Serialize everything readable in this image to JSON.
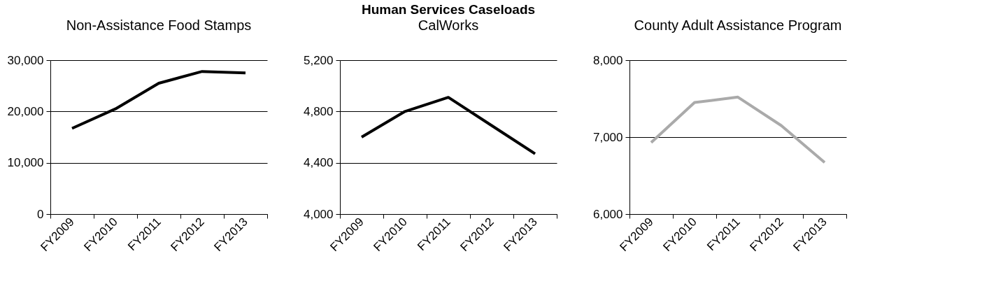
{
  "chart_data": [
    {
      "type": "line",
      "title": "Non-Assistance Food Stamps",
      "categories": [
        "FY2009",
        "FY2010",
        "FY2011",
        "FY2012",
        "FY2013"
      ],
      "series": [
        {
          "color": "#000000",
          "values": [
            16700,
            20500,
            25500,
            27800,
            27500
          ]
        }
      ],
      "ylim": [
        0,
        30000
      ],
      "yticks": [
        0,
        {
          "value": 10000,
          "label": "10,000"
        },
        {
          "value": 20000,
          "label": "20,000"
        },
        {
          "value": 30000,
          "label": "30,000"
        }
      ],
      "grid": "y"
    },
    {
      "type": "line",
      "title": "Human Services Caseloads",
      "subtitle": "CalWorks",
      "categories": [
        "FY2009",
        "FY2010",
        "FY2011",
        "FY2012",
        "FY2013"
      ],
      "series": [
        {
          "color": "#000000",
          "values": [
            4600,
            4800,
            4910,
            4690,
            4470
          ]
        }
      ],
      "ylim": [
        4000,
        5200
      ],
      "yticks": [
        {
          "value": 4000,
          "label": "4,000"
        },
        {
          "value": 4400,
          "label": "4,400"
        },
        {
          "value": 4800,
          "label": "4,800"
        },
        {
          "value": 5200,
          "label": "5,200"
        }
      ],
      "grid": "y"
    },
    {
      "type": "line",
      "title": "County Adult Assistance Program",
      "categories": [
        "FY2009",
        "FY2010",
        "FY2011",
        "FY2012",
        "FY2013"
      ],
      "series": [
        {
          "color": "#aaaaaa",
          "values": [
            6930,
            7450,
            7520,
            7150,
            6670
          ]
        }
      ],
      "ylim": [
        6000,
        8000
      ],
      "yticks": [
        {
          "value": 6000,
          "label": "6,000"
        },
        {
          "value": 7000,
          "label": "7,000"
        },
        {
          "value": 8000,
          "label": "8,000"
        }
      ],
      "grid": "y"
    }
  ]
}
